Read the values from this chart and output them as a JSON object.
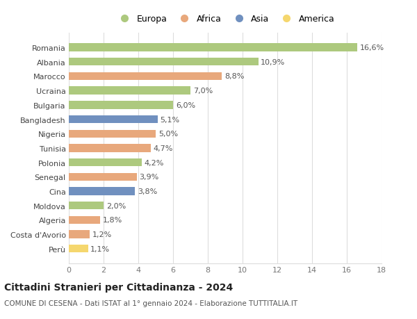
{
  "countries": [
    "Romania",
    "Albania",
    "Marocco",
    "Ucraina",
    "Bulgaria",
    "Bangladesh",
    "Nigeria",
    "Tunisia",
    "Polonia",
    "Senegal",
    "Cina",
    "Moldova",
    "Algeria",
    "Costa d'Avorio",
    "Perù"
  ],
  "values": [
    16.6,
    10.9,
    8.8,
    7.0,
    6.0,
    5.1,
    5.0,
    4.7,
    4.2,
    3.9,
    3.8,
    2.0,
    1.8,
    1.2,
    1.1
  ],
  "labels": [
    "16,6%",
    "10,9%",
    "8,8%",
    "7,0%",
    "6,0%",
    "5,1%",
    "5,0%",
    "4,7%",
    "4,2%",
    "3,9%",
    "3,8%",
    "2,0%",
    "1,8%",
    "1,2%",
    "1,1%"
  ],
  "continents": [
    "Europa",
    "Europa",
    "Africa",
    "Europa",
    "Europa",
    "Asia",
    "Africa",
    "Africa",
    "Europa",
    "Africa",
    "Asia",
    "Europa",
    "Africa",
    "Africa",
    "America"
  ],
  "colors": {
    "Europa": "#adc97e",
    "Africa": "#e8a87c",
    "Asia": "#7090bf",
    "America": "#f5d76e"
  },
  "legend_order": [
    "Europa",
    "Africa",
    "Asia",
    "America"
  ],
  "xlim": [
    0,
    18
  ],
  "xticks": [
    0,
    2,
    4,
    6,
    8,
    10,
    12,
    14,
    16,
    18
  ],
  "title": "Cittadini Stranieri per Cittadinanza - 2024",
  "subtitle": "COMUNE DI CESENA - Dati ISTAT al 1° gennaio 2024 - Elaborazione TUTTITALIA.IT",
  "bg_color": "#ffffff",
  "grid_color": "#dddddd",
  "bar_height": 0.55,
  "label_fontsize": 8,
  "title_fontsize": 10,
  "subtitle_fontsize": 7.5,
  "country_fontsize": 8,
  "tick_fontsize": 8,
  "legend_fontsize": 9
}
